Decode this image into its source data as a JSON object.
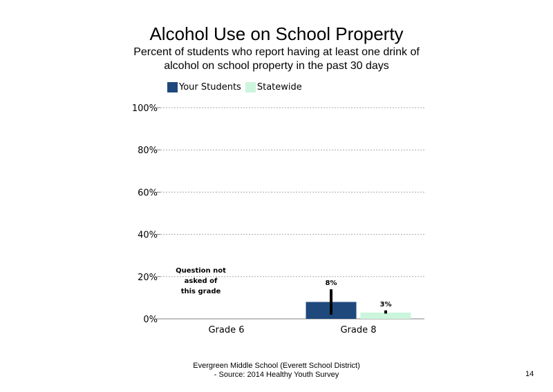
{
  "chart_data": {
    "type": "bar",
    "title": "Alcohol Use on School  Property",
    "subtitle": "Percent of students who report having at least one drink of alcohol on school property in the past 30 days",
    "categories": [
      "Grade 6",
      "Grade 8"
    ],
    "series": [
      {
        "name": "Your Students",
        "color": "#1f497d",
        "values": [
          null,
          8
        ],
        "labels": [
          "",
          "8%"
        ],
        "error": [
          null,
          [
            2,
            14
          ]
        ]
      },
      {
        "name": "Statewide",
        "color": "#ccf5dd",
        "values": [
          null,
          3
        ],
        "labels": [
          "",
          "3%"
        ],
        "error": [
          null,
          [
            2.5,
            4
          ]
        ]
      }
    ],
    "ylim": [
      0,
      100
    ],
    "yticks": [
      0,
      20,
      40,
      60,
      80,
      100
    ],
    "ytick_labels": [
      "0%",
      "20%",
      "40%",
      "60%",
      "80%",
      "100%"
    ],
    "xlabel": "",
    "ylabel": "",
    "grid": true,
    "legend_position": "top-left",
    "annotation": {
      "category": "Grade 6",
      "lines": [
        "Question not",
        "asked of",
        "this grade"
      ]
    }
  },
  "footer": {
    "line1": "Evergreen Middle School (Everett School District)",
    "line2": "- Source: 2014 Healthy  Youth Survey"
  },
  "page_number": "14"
}
